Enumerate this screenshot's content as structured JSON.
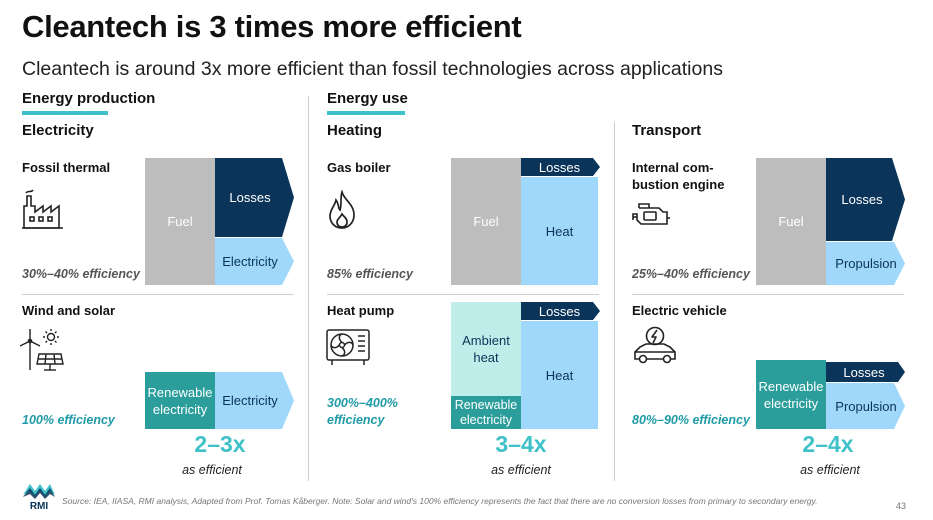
{
  "title": "Cleantech is 3 times more efficient",
  "subtitle": "Cleantech is around 3x more efficient than fossil technologies across applications",
  "sections": {
    "production": "Energy production",
    "use": "Energy use"
  },
  "columns": {
    "electricity": {
      "heading": "Electricity",
      "fossil": {
        "name": "Fossil thermal",
        "efficiency": "30%–40% efficiency",
        "input": "Fuel",
        "losses": "Losses",
        "output": "Electricity",
        "efficiency_value": [
          30,
          40
        ]
      },
      "clean": {
        "name": "Wind and solar",
        "efficiency": "100% efficiency",
        "input": "Renewable electricity",
        "output": "Electricity",
        "efficiency_value": [
          100,
          100
        ]
      },
      "multiplier": "2–3x",
      "as_efficient": "as efficient"
    },
    "heating": {
      "heading": "Heating",
      "fossil": {
        "name": "Gas boiler",
        "efficiency": "85% efficiency",
        "input": "Fuel",
        "losses": "Losses",
        "output": "Heat",
        "efficiency_value": [
          85,
          85
        ]
      },
      "clean": {
        "name": "Heat pump",
        "efficiency": "300%–400% efficiency",
        "ambient": "Ambient heat",
        "input": "Renewable electricity",
        "losses": "Losses",
        "output": "Heat",
        "efficiency_value": [
          300,
          400
        ]
      },
      "multiplier": "3–4x",
      "as_efficient": "as efficient"
    },
    "transport": {
      "heading": "Transport",
      "fossil": {
        "name": "Internal com-bustion engine",
        "name_line1": "Internal com-",
        "name_line2": "bustion engine",
        "efficiency": "25%–40% efficiency",
        "input": "Fuel",
        "losses": "Losses",
        "output": "Propulsion",
        "efficiency_value": [
          25,
          40
        ]
      },
      "clean": {
        "name": "Electric vehicle",
        "efficiency": "80%–90% efficiency",
        "input": "Renewable electricity",
        "losses": "Losses",
        "output": "Propulsion",
        "efficiency_value": [
          80,
          90
        ]
      },
      "multiplier": "2–4x",
      "as_efficient": "as efficient"
    }
  },
  "footer": {
    "logo_text": "RMI",
    "source": "Source: IEA, IIASA, RMI analysis, Adapted from Prof. Tomas Kåberger. Note: Solar and wind's 100% efficiency represents the fact that there are no conversion losses from primary to secondary energy.",
    "page_number": "43"
  },
  "colors": {
    "accent": "#3fc1c9",
    "fuel": "#bdbdbd",
    "losses": "#0a3459",
    "output": "#9fd8fb",
    "renewable": "#2b9e9c",
    "ambient": "#bfeeea"
  },
  "icons": [
    "factory-icon",
    "wind-solar-icon",
    "flame-icon",
    "heat-pump-icon",
    "engine-icon",
    "electric-car-icon",
    "rmi-logo-icon"
  ]
}
